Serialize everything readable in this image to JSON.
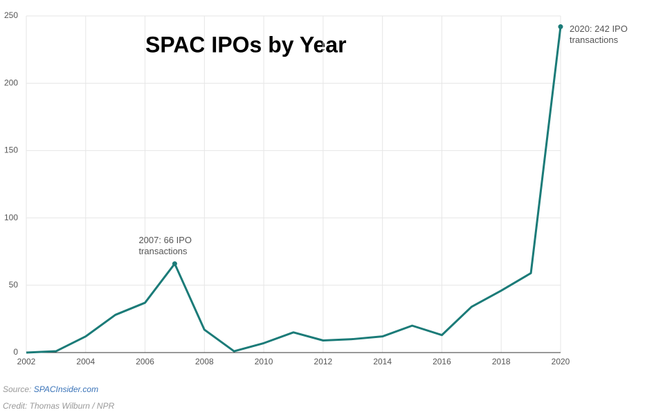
{
  "chart_data": {
    "type": "line",
    "title": "SPAC IPOs by Year",
    "x": [
      2002,
      2003,
      2004,
      2005,
      2006,
      2007,
      2008,
      2009,
      2010,
      2011,
      2012,
      2013,
      2014,
      2015,
      2016,
      2017,
      2018,
      2019,
      2020
    ],
    "series": [
      {
        "name": "SPAC IPOs",
        "color": "#1b7b78",
        "values": [
          0,
          1,
          12,
          28,
          37,
          66,
          17,
          1,
          7,
          15,
          9,
          10,
          12,
          20,
          13,
          34,
          46,
          59,
          242
        ]
      }
    ],
    "xlim": [
      2002,
      2020
    ],
    "xticks": [
      2002,
      2004,
      2006,
      2008,
      2010,
      2012,
      2014,
      2016,
      2018,
      2020
    ],
    "ylim": [
      0,
      250
    ],
    "yticks": [
      0,
      50,
      100,
      150,
      200,
      250
    ],
    "grid": true,
    "annotations": [
      {
        "x": 2007,
        "y": 66,
        "text": [
          "2007: 66 IPO",
          "transactions"
        ]
      },
      {
        "x": 2020,
        "y": 242,
        "text": [
          "2020: 242 IPO",
          "transactions"
        ]
      }
    ],
    "source_label": "Source:",
    "source": "SPACInsider.com",
    "credit": "Credit: Thomas Wilburn / NPR"
  }
}
